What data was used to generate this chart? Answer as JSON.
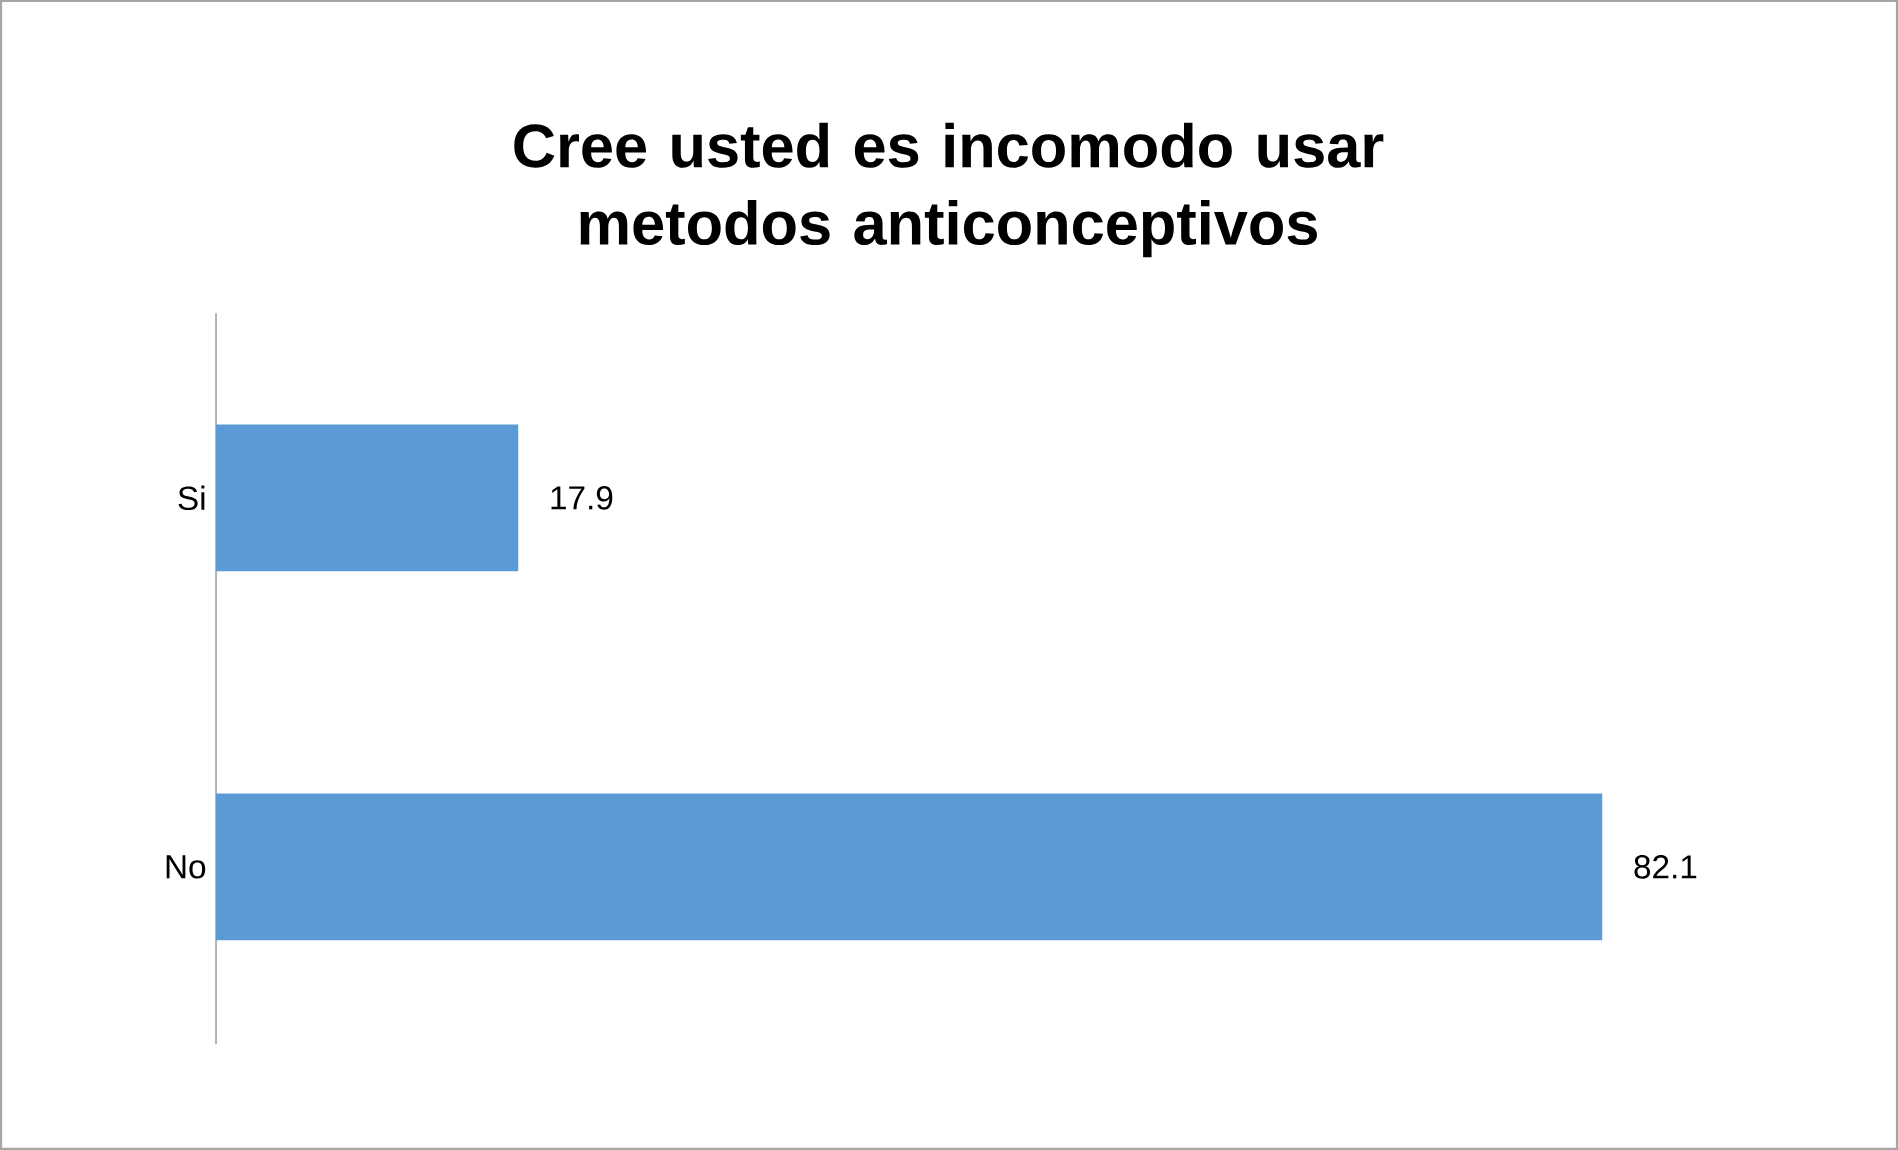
{
  "chart_data": {
    "type": "bar",
    "orientation": "horizontal",
    "title": "Cree usted es incomodo usar metodos anticonceptivos",
    "categories": [
      "Si",
      "No"
    ],
    "values": [
      17.9,
      82.1
    ],
    "color": "#5b9bd5",
    "data_labels": true,
    "tick_labels": "y"
  }
}
